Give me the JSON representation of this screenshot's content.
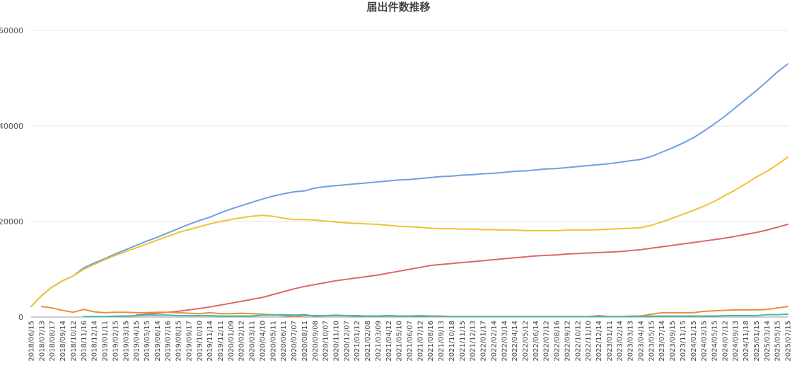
{
  "chart_data": {
    "type": "line",
    "title": "届出件数推移",
    "xlabel": "",
    "ylabel": "",
    "ylim": [
      0,
      60000
    ],
    "yticks": [
      0,
      20000,
      40000,
      60000
    ],
    "grid": true,
    "legend": "none",
    "x": [
      "2018/06/15",
      "2018/07/13",
      "2018/08/17",
      "2018/09/14",
      "2018/10/12",
      "2018/11/16",
      "2018/12/14",
      "2019/01/11",
      "2019/02/15",
      "2019/03/15",
      "2019/04/15",
      "2019/05/15",
      "2019/06/14",
      "2019/07/16",
      "2019/08/15",
      "2019/09/17",
      "2019/10/10",
      "2019/11/14",
      "2019/12/11",
      "2020/01/09",
      "2020/02/12",
      "2020/03/11",
      "2020/04/10",
      "2020/05/11",
      "2020/06/11",
      "2020/07/07",
      "2020/08/11",
      "2020/09/08",
      "2020/10/07",
      "2020/11/10",
      "2020/12/07",
      "2021/01/12",
      "2021/02/08",
      "2021/03/09",
      "2021/04/12",
      "2021/05/10",
      "2021/06/07",
      "2021/07/12",
      "2021/08/16",
      "2021/09/13",
      "2021/10/18",
      "2021/11/15",
      "2021/12/13",
      "2022/01/17",
      "2022/02/14",
      "2022/03/14",
      "2022/04/14",
      "2022/05/12",
      "2022/06/14",
      "2022/07/12",
      "2022/08/16",
      "2022/09/12",
      "2022/10/12",
      "2022/11/10",
      "2022/12/14",
      "2023/01/11",
      "2023/02/14",
      "2023/03/13",
      "2023/04/14",
      "2023/05/15",
      "2023/07/14",
      "2023/09/15",
      "2023/11/15",
      "2024/01/15",
      "2024/03/15",
      "2024/05/15",
      "2024/07/12",
      "2024/09/13",
      "2024/11/18",
      "2025/01/15",
      "2025/03/14",
      "2025/05/15",
      "2025/07/15"
    ],
    "series": [
      {
        "color": "#6fa0e0",
        "values": [
          2200,
          4500,
          6300,
          7600,
          8600,
          10300,
          11300,
          12200,
          13200,
          14100,
          15000,
          15900,
          16700,
          17600,
          18500,
          19400,
          20200,
          20900,
          21800,
          22600,
          23300,
          24000,
          24700,
          25300,
          25800,
          26200,
          26400,
          27000,
          27300,
          27500,
          27700,
          27900,
          28100,
          28300,
          28500,
          28700,
          28800,
          29000,
          29200,
          29400,
          29500,
          29700,
          29800,
          30000,
          30100,
          30300,
          30500,
          30600,
          30800,
          31000,
          31100,
          31300,
          31500,
          31700,
          31900,
          32100,
          32400,
          32700,
          33000,
          33600,
          34500,
          35400,
          36400,
          37500,
          38900,
          40400,
          42000,
          43800,
          45600,
          47400,
          49300,
          51300,
          53000
        ]
      },
      {
        "color": "#f1c232",
        "values": [
          2200,
          4500,
          6300,
          7600,
          8600,
          10000,
          11000,
          12000,
          12900,
          13700,
          14500,
          15300,
          16100,
          16900,
          17700,
          18300,
          18900,
          19500,
          20000,
          20400,
          20800,
          21100,
          21300,
          21100,
          20700,
          20400,
          20400,
          20300,
          20100,
          19900,
          19700,
          19600,
          19500,
          19400,
          19200,
          19000,
          18900,
          18800,
          18600,
          18500,
          18500,
          18400,
          18400,
          18300,
          18300,
          18200,
          18200,
          18100,
          18100,
          18100,
          18100,
          18200,
          18200,
          18200,
          18300,
          18400,
          18500,
          18600,
          18700,
          19200,
          19900,
          20700,
          21500,
          22300,
          23200,
          24200,
          25400,
          26600,
          27900,
          29300,
          30500,
          31900,
          33500
        ]
      },
      {
        "color": "#e06666",
        "values": [
          null,
          null,
          null,
          null,
          null,
          null,
          null,
          null,
          null,
          null,
          400,
          600,
          800,
          1000,
          1200,
          1500,
          1800,
          2100,
          2500,
          2900,
          3300,
          3700,
          4100,
          4700,
          5300,
          5900,
          6400,
          6800,
          7200,
          7600,
          7900,
          8200,
          8500,
          8800,
          9200,
          9600,
          10000,
          10400,
          10800,
          11000,
          11200,
          11400,
          11600,
          11800,
          12000,
          12200,
          12400,
          12600,
          12800,
          12900,
          13000,
          13200,
          13300,
          13400,
          13500,
          13600,
          13700,
          13900,
          14100,
          14400,
          14700,
          15000,
          15300,
          15600,
          15900,
          16200,
          16500,
          16900,
          17300,
          17700,
          18200,
          18800,
          19400
        ]
      },
      {
        "color": "#e69138",
        "values": [
          null,
          2200,
          1900,
          1400,
          1000,
          1600,
          1100,
          900,
          1000,
          1000,
          900,
          900,
          1000,
          1000,
          900,
          800,
          700,
          900,
          700,
          700,
          800,
          700,
          600,
          500,
          300,
          100,
          300,
          300,
          300,
          400,
          300,
          300,
          200,
          200,
          300,
          200,
          200,
          300,
          200,
          100,
          100,
          100,
          100,
          100,
          100,
          100,
          100,
          100,
          100,
          100,
          100,
          100,
          100,
          100,
          300,
          100,
          100,
          200,
          200,
          600,
          900,
          900,
          900,
          900,
          1200,
          1300,
          1400,
          1500,
          1500,
          1500,
          1600,
          1900,
          2200
        ]
      },
      {
        "color": "#45b8ac",
        "values": [
          null,
          null,
          null,
          null,
          null,
          100,
          100,
          100,
          200,
          200,
          300,
          400,
          400,
          400,
          300,
          300,
          300,
          300,
          200,
          200,
          200,
          200,
          400,
          400,
          500,
          400,
          500,
          200,
          300,
          300,
          300,
          200,
          200,
          200,
          300,
          200,
          200,
          200,
          200,
          200,
          100,
          100,
          100,
          100,
          100,
          100,
          100,
          100,
          100,
          100,
          100,
          100,
          100,
          100,
          100,
          100,
          100,
          100,
          200,
          200,
          200,
          200,
          200,
          200,
          200,
          200,
          300,
          300,
          300,
          300,
          500,
          500,
          600
        ]
      }
    ]
  }
}
